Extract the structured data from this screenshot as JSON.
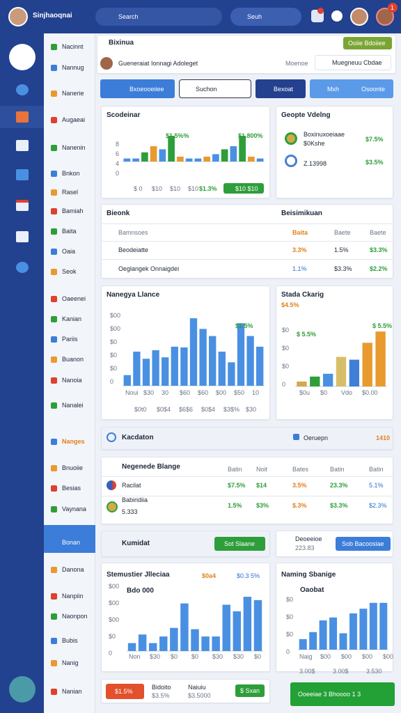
{
  "header": {
    "title": "Sinjhaoqnai",
    "search": "Search",
    "search_button": "Seuh",
    "badge": "1"
  },
  "nav": [
    "Nacinnt",
    "Nannug",
    "Nanerie",
    "Augaeai",
    "Nanenin",
    "Bnkon",
    "Rasel",
    "Bamiah",
    "Baita",
    "Oaia",
    "Seok",
    "Oaeenei",
    "Kanian",
    "Pariis",
    "Buanon",
    "Nanoia",
    "Nanalei",
    "Nanges",
    "Bnuoiie",
    "Besias",
    "Vaynana",
    "Bonan",
    "Danona",
    "Nanpiin",
    "Naonpon",
    "Bubis",
    "Nanig",
    "Nanian"
  ],
  "top": {
    "title": "Bixinua",
    "button": "Ooiie Bdoiiee",
    "user": "Gueneraiat Ionnagi Adoleget",
    "status": "Moenoe",
    "status_alt": "Muegneuu Cbdae"
  },
  "toolbar": {
    "primary": "Bxoeooeiiee",
    "select": "Suchon",
    "export": "Bexoat",
    "filter": "Mxh",
    "other": "Osoonte"
  },
  "sales": {
    "title": "Scodeinar",
    "label_a": "$1.5%%",
    "label_b": "$1.800%",
    "yticks": [
      "8",
      "6",
      "4",
      "0"
    ],
    "xlabels": [
      "$ 0",
      "$10",
      "$10",
      "$10"
    ],
    "footer": "$1.3%",
    "button": "$10 $10",
    "chart": {
      "values": [
        5,
        5,
        15,
        25,
        20,
        42,
        8,
        5,
        5,
        8,
        12,
        20,
        25,
        42,
        8,
        5
      ],
      "colors": [
        "#4a90e2",
        "#4a90e2",
        "#2e9e3a",
        "#e89a2e",
        "#4a90e2",
        "#2e9e3a",
        "#e89a2e",
        "#4a90e2",
        "#4a90e2",
        "#e89a2e",
        "#4a90e2",
        "#2e9e3a",
        "#4a90e2",
        "#2e9e3a",
        "#e89a2e",
        "#4a90e2"
      ],
      "ylim": [
        0,
        50
      ]
    }
  },
  "goals": {
    "title": "Geopte Vdelng",
    "rows": [
      {
        "name": "Boxinuxoeiaae",
        "sub": "$0Kshe",
        "value": "$7.5%"
      },
      {
        "name": "Z.13998",
        "value": "$3.5%"
      }
    ]
  },
  "table1": {
    "left_title": "Bieonk",
    "right_title": "Beisimikuan",
    "columns": [
      "Bamnsoes",
      "Baita",
      "Baete",
      "Baete"
    ],
    "rows": [
      [
        "Beodeiatte",
        "3.3%",
        "1.5%",
        "$3.3%"
      ],
      [
        "Oeglangek Onnaigdei",
        "1.1%",
        "$3.3%",
        "$2.2%"
      ]
    ]
  },
  "balance": {
    "title": "Nanegya Llance",
    "label": "$1.5%",
    "yticks": [
      "$00",
      "$00",
      "$0",
      "$0",
      "$0",
      "0"
    ],
    "xlabels": [
      "Noui",
      "$30",
      "30",
      "$60",
      "$60",
      "$00",
      "$50",
      "10"
    ],
    "footer": [
      "$0t0",
      "$0$4",
      "$6$6",
      "$0$4",
      "$3$%",
      "$30"
    ],
    "chart": {
      "values": [
        15,
        48,
        38,
        50,
        40,
        55,
        54,
        95,
        80,
        70,
        48,
        33,
        88,
        70,
        55
      ],
      "color": "#4a90e2",
      "ylim": [
        0,
        100
      ]
    }
  },
  "stack": {
    "title": "Stada Ckarig",
    "sub": "$4.5%",
    "legend": "$ 5.5%",
    "badge": "$ 5.5%",
    "yticks": [
      "$0",
      "$0",
      "$0",
      "0"
    ],
    "xlabels": [
      "$0u",
      "$0",
      "Vdo",
      "$0.00"
    ],
    "chart": {
      "values": [
        7,
        14,
        18,
        42,
        38,
        62,
        78
      ],
      "colors": [
        "#d4a94a",
        "#2e9e3a",
        "#4a90e2",
        "#d9be6a",
        "#3f7fd6",
        "#e89a2e",
        "#e89a2e"
      ],
      "ylim": [
        0,
        90
      ]
    }
  },
  "location": {
    "title": "Kacdaton",
    "label": "Oeruepn",
    "value": "1410"
  },
  "table2": {
    "title": "Negenede Blange",
    "columns": [
      "Batin",
      "Noit",
      "Bates",
      "Batin",
      "Batin"
    ],
    "rows": [
      {
        "name": "Racilat",
        "cells": [
          "$7.5%",
          "$14",
          "3.5%",
          "23.3%",
          "5.1%"
        ]
      },
      {
        "name": "Babiridiia",
        "sub": "5.333",
        "cells": [
          "1.5%",
          "$3%",
          "$.3%",
          "$3.3%",
          "$2.3%"
        ]
      }
    ]
  },
  "summary": {
    "title": "Kumidat",
    "button": "Sot Slaane",
    "right_title": "Deoeeioe",
    "right_value": "223.83",
    "right_button": "Sob Bacoosiae"
  },
  "stats": {
    "title": "Stemustier Jlleciaa",
    "tag1": "$0a4",
    "tag2": "$0.3 5%",
    "sub": "Bdo 000",
    "yticks": [
      "$00",
      "$00",
      "$00",
      "$0",
      "0"
    ],
    "xlabels": [
      "Non",
      "$30",
      "$0",
      "$0",
      "$30",
      "$30",
      "$0"
    ],
    "chart": {
      "values": [
        12,
        25,
        12,
        22,
        35,
        72,
        33,
        22,
        22,
        70,
        60,
        82,
        77
      ],
      "color": "#4a90e2",
      "ylim": [
        0,
        100
      ]
    }
  },
  "changes": {
    "title": "Naming Sbanige",
    "sub": "Oaobat",
    "yticks": [
      "$0",
      "$0",
      "$0",
      "0"
    ],
    "xlabels": [
      "Naig",
      "$00",
      "$00",
      "$00",
      "$00"
    ],
    "footer": [
      "3.00$",
      "3.00$",
      "3.530"
    ],
    "chart": {
      "values": [
        18,
        30,
        50,
        55,
        28,
        62,
        70,
        80,
        80
      ],
      "color": "#4a90e2",
      "ylim": [
        0,
        100
      ]
    }
  },
  "bottom": {
    "badge": "$1.5%",
    "b1": "Bidoito",
    "b1v": "$3.5%",
    "b2": "Naiuiu",
    "b2v": "$3.5000",
    "button": "$ Sxan",
    "cta": "Ooeeiae 3 Bhoooo 1 3"
  }
}
